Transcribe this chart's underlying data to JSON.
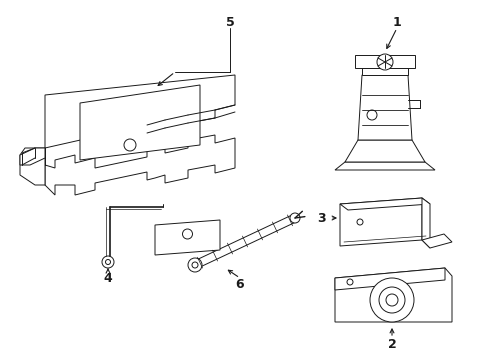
{
  "background_color": "#ffffff",
  "line_color": "#1a1a1a",
  "fig_width": 4.89,
  "fig_height": 3.6,
  "dpi": 100,
  "components": {
    "layout": "six parts: large bracket top-left, jack top-right, cradle mid-right, base-pad bottom-right, L-rod bottom-left, wrench+plate center-bottom"
  }
}
